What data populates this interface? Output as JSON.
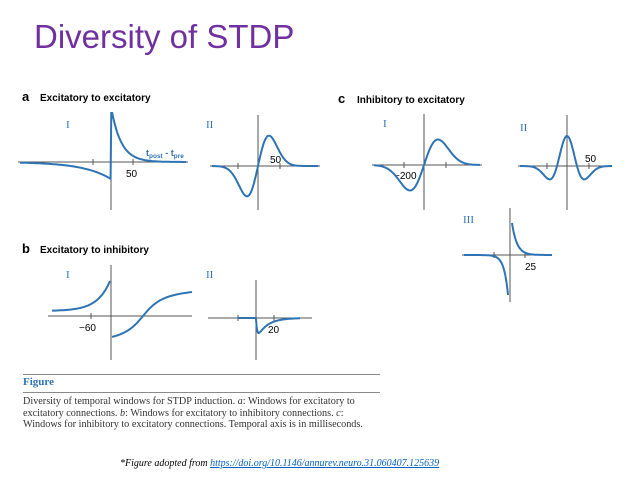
{
  "title": "Diversity of STDP",
  "panels": {
    "a": {
      "letter": "a",
      "heading": "Excitatory to excitatory",
      "I": {
        "roman": "I",
        "tick": "50",
        "annotation": {
          "t1": "t",
          "s1": "post",
          "dash": " - ",
          "t2": "t",
          "s2": "pre"
        }
      },
      "II": {
        "roman": "II",
        "tick": "50"
      }
    },
    "b": {
      "letter": "b",
      "heading": "Excitatory to inhibitory",
      "I": {
        "roman": "I",
        "tick": "−60"
      },
      "II": {
        "roman": "II",
        "tick": "20"
      }
    },
    "c": {
      "letter": "c",
      "heading": "Inhibitory to excitatory",
      "I": {
        "roman": "I",
        "tick": "−200"
      },
      "II": {
        "roman": "II",
        "tick": "50"
      },
      "III": {
        "roman": "III",
        "tick": "25"
      }
    }
  },
  "figure": {
    "label": "Figure",
    "caption": {
      "p1": "Diversity of temporal windows for STDP induction. ",
      "a_letter": "a",
      "p2": ": Windows for excitatory to excitatory connections. ",
      "b_letter": "b",
      "p3": ": Windows for excitatory to inhibitory connections. ",
      "c_letter": "c",
      "p4": ": Windows for inhibitory to excitatory connections. Temporal axis is in milliseconds."
    }
  },
  "source": {
    "prefix": "*Figure adopted from ",
    "link": "https://doi.org/10.1146/annurev.neuro.31.060407.125639"
  },
  "colors": {
    "title": "#7030a0",
    "curve": "#2e74b5",
    "axis": "#555555",
    "link": "#0563c1"
  }
}
